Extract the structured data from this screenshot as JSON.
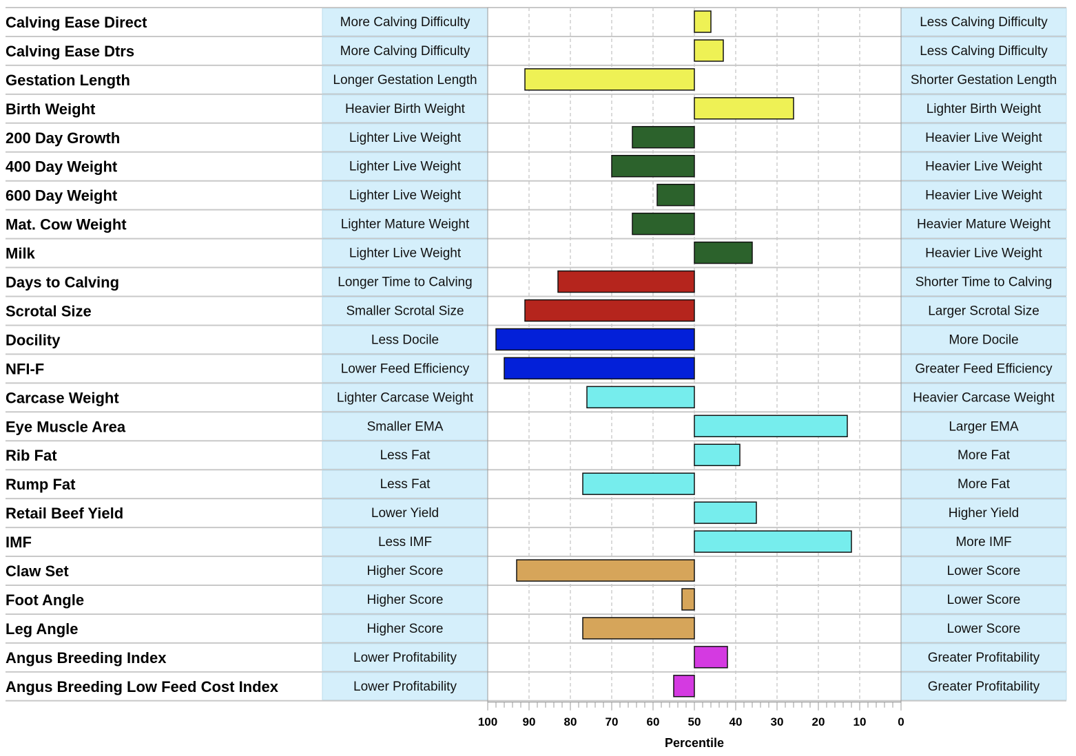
{
  "chart_data": {
    "type": "bar",
    "orientation": "horizontal",
    "xlabel": "Percentile",
    "xlim": [
      100,
      0
    ],
    "baseline": 50,
    "ticks": [
      100,
      90,
      80,
      70,
      60,
      50,
      40,
      30,
      20,
      10,
      0
    ],
    "colors": {
      "yellow": "#eef155",
      "darkgreen": "#2c622c",
      "red": "#b5251d",
      "blue": "#0320d9",
      "cyan": "#76eded",
      "tan": "#d6a55a",
      "magenta": "#d43ae1",
      "label_box": "#d5effb",
      "label_box_border": "#bcdcec",
      "row_line": "#c8c8c8",
      "grid": "#b5b5b5"
    },
    "rows": [
      {
        "trait": "Calving Ease Direct",
        "left": "More Calving Difficulty",
        "right": "Less Calving Difficulty",
        "value": 46,
        "color": "yellow"
      },
      {
        "trait": "Calving Ease Dtrs",
        "left": "More Calving Difficulty",
        "right": "Less Calving Difficulty",
        "value": 43,
        "color": "yellow"
      },
      {
        "trait": "Gestation Length",
        "left": "Longer Gestation Length",
        "right": "Shorter Gestation Length",
        "value": 91,
        "color": "yellow"
      },
      {
        "trait": "Birth Weight",
        "left": "Heavier Birth Weight",
        "right": "Lighter Birth Weight",
        "value": 26,
        "color": "yellow"
      },
      {
        "trait": "200 Day Growth",
        "left": "Lighter Live Weight",
        "right": "Heavier Live Weight",
        "value": 65,
        "color": "darkgreen"
      },
      {
        "trait": "400 Day Weight",
        "left": "Lighter Live Weight",
        "right": "Heavier Live Weight",
        "value": 70,
        "color": "darkgreen"
      },
      {
        "trait": "600 Day Weight",
        "left": "Lighter Live Weight",
        "right": "Heavier Live Weight",
        "value": 59,
        "color": "darkgreen"
      },
      {
        "trait": "Mat. Cow Weight",
        "left": "Lighter Mature Weight",
        "right": "Heavier Mature Weight",
        "value": 65,
        "color": "darkgreen"
      },
      {
        "trait": "Milk",
        "left": "Lighter Live Weight",
        "right": "Heavier Live Weight",
        "value": 36,
        "color": "darkgreen"
      },
      {
        "trait": "Days to Calving",
        "left": "Longer Time to Calving",
        "right": "Shorter Time to Calving",
        "value": 83,
        "color": "red"
      },
      {
        "trait": "Scrotal Size",
        "left": "Smaller Scrotal Size",
        "right": "Larger Scrotal Size",
        "value": 91,
        "color": "red"
      },
      {
        "trait": "Docility",
        "left": "Less Docile",
        "right": "More Docile",
        "value": 98,
        "color": "blue"
      },
      {
        "trait": "NFI-F",
        "left": "Lower Feed Efficiency",
        "right": "Greater Feed Efficiency",
        "value": 96,
        "color": "blue"
      },
      {
        "trait": "Carcase Weight",
        "left": "Lighter Carcase Weight",
        "right": "Heavier Carcase Weight",
        "value": 76,
        "color": "cyan"
      },
      {
        "trait": "Eye Muscle Area",
        "left": "Smaller EMA",
        "right": "Larger EMA",
        "value": 13,
        "color": "cyan"
      },
      {
        "trait": "Rib Fat",
        "left": "Less Fat",
        "right": "More Fat",
        "value": 39,
        "color": "cyan"
      },
      {
        "trait": "Rump Fat",
        "left": "Less Fat",
        "right": "More Fat",
        "value": 77,
        "color": "cyan"
      },
      {
        "trait": "Retail Beef Yield",
        "left": "Lower Yield",
        "right": "Higher Yield",
        "value": 35,
        "color": "cyan"
      },
      {
        "trait": "IMF",
        "left": "Less IMF",
        "right": "More IMF",
        "value": 12,
        "color": "cyan"
      },
      {
        "trait": "Claw Set",
        "left": "Higher Score",
        "right": "Lower Score",
        "value": 93,
        "color": "tan"
      },
      {
        "trait": "Foot Angle",
        "left": "Higher Score",
        "right": "Lower Score",
        "value": 53,
        "color": "tan"
      },
      {
        "trait": "Leg Angle",
        "left": "Higher Score",
        "right": "Lower Score",
        "value": 77,
        "color": "tan"
      },
      {
        "trait": "Angus Breeding Index",
        "left": "Lower Profitability",
        "right": "Greater Profitability",
        "value": 42,
        "color": "magenta"
      },
      {
        "trait": "Angus Breeding Low Feed Cost Index",
        "left": "Lower Profitability",
        "right": "Greater Profitability",
        "value": 55,
        "color": "magenta"
      }
    ]
  }
}
